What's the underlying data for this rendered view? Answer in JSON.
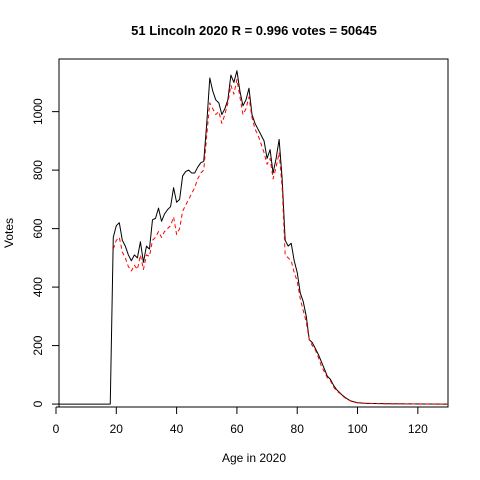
{
  "chart_data": {
    "type": "line",
    "title": "51 Lincoln 2020 R = 0.996 votes = 50645",
    "xlabel": "Age in 2020",
    "ylabel": "Votes",
    "xlim": [
      1,
      130
    ],
    "ylim": [
      -10,
      1180
    ],
    "xticks": [
      0,
      20,
      40,
      60,
      80,
      100,
      120
    ],
    "yticks": [
      0,
      200,
      400,
      600,
      800,
      1000
    ],
    "grid": false,
    "series": [
      {
        "style": "solid",
        "color": "#000000",
        "points": [
          [
            1,
            0
          ],
          [
            18,
            0
          ],
          [
            19,
            570
          ],
          [
            20,
            610
          ],
          [
            21,
            620
          ],
          [
            22,
            560
          ],
          [
            23,
            540
          ],
          [
            24,
            510
          ],
          [
            25,
            490
          ],
          [
            26,
            510
          ],
          [
            27,
            500
          ],
          [
            28,
            555
          ],
          [
            29,
            485
          ],
          [
            30,
            540
          ],
          [
            31,
            530
          ],
          [
            32,
            630
          ],
          [
            33,
            635
          ],
          [
            34,
            670
          ],
          [
            35,
            625
          ],
          [
            36,
            650
          ],
          [
            37,
            665
          ],
          [
            38,
            675
          ],
          [
            39,
            740
          ],
          [
            40,
            690
          ],
          [
            41,
            700
          ],
          [
            42,
            780
          ],
          [
            43,
            795
          ],
          [
            44,
            800
          ],
          [
            45,
            790
          ],
          [
            46,
            790
          ],
          [
            47,
            810
          ],
          [
            48,
            825
          ],
          [
            49,
            830
          ],
          [
            50,
            960
          ],
          [
            51,
            1115
          ],
          [
            52,
            1070
          ],
          [
            53,
            1040
          ],
          [
            54,
            1030
          ],
          [
            55,
            990
          ],
          [
            56,
            1010
          ],
          [
            57,
            1040
          ],
          [
            58,
            1125
          ],
          [
            59,
            1100
          ],
          [
            60,
            1140
          ],
          [
            61,
            1070
          ],
          [
            62,
            1020
          ],
          [
            63,
            1040
          ],
          [
            64,
            1080
          ],
          [
            65,
            990
          ],
          [
            66,
            960
          ],
          [
            67,
            940
          ],
          [
            68,
            920
          ],
          [
            69,
            900
          ],
          [
            70,
            840
          ],
          [
            71,
            870
          ],
          [
            72,
            790
          ],
          [
            73,
            840
          ],
          [
            74,
            905
          ],
          [
            75,
            770
          ],
          [
            76,
            560
          ],
          [
            77,
            540
          ],
          [
            78,
            550
          ],
          [
            79,
            490
          ],
          [
            80,
            450
          ],
          [
            81,
            380
          ],
          [
            82,
            350
          ],
          [
            83,
            300
          ],
          [
            84,
            220
          ],
          [
            85,
            210
          ],
          [
            86,
            190
          ],
          [
            87,
            170
          ],
          [
            88,
            145
          ],
          [
            89,
            120
          ],
          [
            90,
            95
          ],
          [
            91,
            85
          ],
          [
            92,
            65
          ],
          [
            93,
            50
          ],
          [
            94,
            40
          ],
          [
            95,
            30
          ],
          [
            96,
            22
          ],
          [
            97,
            15
          ],
          [
            98,
            10
          ],
          [
            99,
            7
          ],
          [
            100,
            5
          ],
          [
            102,
            3
          ],
          [
            105,
            2
          ],
          [
            110,
            1
          ],
          [
            130,
            0
          ]
        ]
      },
      {
        "style": "dashed",
        "color": "#ff0000",
        "points": [
          [
            19,
            530
          ],
          [
            20,
            560
          ],
          [
            21,
            570
          ],
          [
            22,
            520
          ],
          [
            23,
            500
          ],
          [
            24,
            470
          ],
          [
            25,
            455
          ],
          [
            26,
            475
          ],
          [
            27,
            460
          ],
          [
            28,
            510
          ],
          [
            29,
            460
          ],
          [
            30,
            510
          ],
          [
            31,
            505
          ],
          [
            32,
            560
          ],
          [
            33,
            570
          ],
          [
            34,
            590
          ],
          [
            35,
            570
          ],
          [
            36,
            590
          ],
          [
            37,
            600
          ],
          [
            38,
            610
          ],
          [
            39,
            640
          ],
          [
            40,
            580
          ],
          [
            41,
            600
          ],
          [
            42,
            660
          ],
          [
            43,
            680
          ],
          [
            44,
            700
          ],
          [
            45,
            720
          ],
          [
            46,
            740
          ],
          [
            47,
            770
          ],
          [
            48,
            790
          ],
          [
            49,
            800
          ],
          [
            50,
            920
          ],
          [
            51,
            1030
          ],
          [
            52,
            1010
          ],
          [
            53,
            990
          ],
          [
            54,
            1000
          ],
          [
            55,
            960
          ],
          [
            56,
            990
          ],
          [
            57,
            1030
          ],
          [
            58,
            1090
          ],
          [
            59,
            1060
          ],
          [
            60,
            1110
          ],
          [
            61,
            1050
          ],
          [
            62,
            990
          ],
          [
            63,
            1010
          ],
          [
            64,
            1050
          ],
          [
            65,
            980
          ],
          [
            66,
            940
          ],
          [
            67,
            920
          ],
          [
            68,
            890
          ],
          [
            69,
            860
          ],
          [
            70,
            820
          ],
          [
            71,
            840
          ],
          [
            72,
            770
          ],
          [
            73,
            810
          ],
          [
            74,
            860
          ],
          [
            75,
            740
          ],
          [
            76,
            510
          ],
          [
            77,
            500
          ],
          [
            78,
            490
          ],
          [
            79,
            450
          ],
          [
            80,
            420
          ],
          [
            81,
            360
          ],
          [
            82,
            320
          ],
          [
            83,
            280
          ],
          [
            84,
            220
          ],
          [
            85,
            200
          ],
          [
            86,
            185
          ],
          [
            87,
            160
          ],
          [
            88,
            130
          ],
          [
            89,
            110
          ],
          [
            90,
            90
          ],
          [
            91,
            80
          ],
          [
            92,
            60
          ],
          [
            93,
            45
          ],
          [
            94,
            38
          ],
          [
            95,
            28
          ],
          [
            96,
            20
          ],
          [
            97,
            14
          ],
          [
            98,
            9
          ],
          [
            99,
            6
          ],
          [
            100,
            4
          ],
          [
            102,
            3
          ],
          [
            105,
            2
          ],
          [
            110,
            1
          ],
          [
            120,
            0
          ],
          [
            130,
            0
          ]
        ]
      }
    ]
  }
}
